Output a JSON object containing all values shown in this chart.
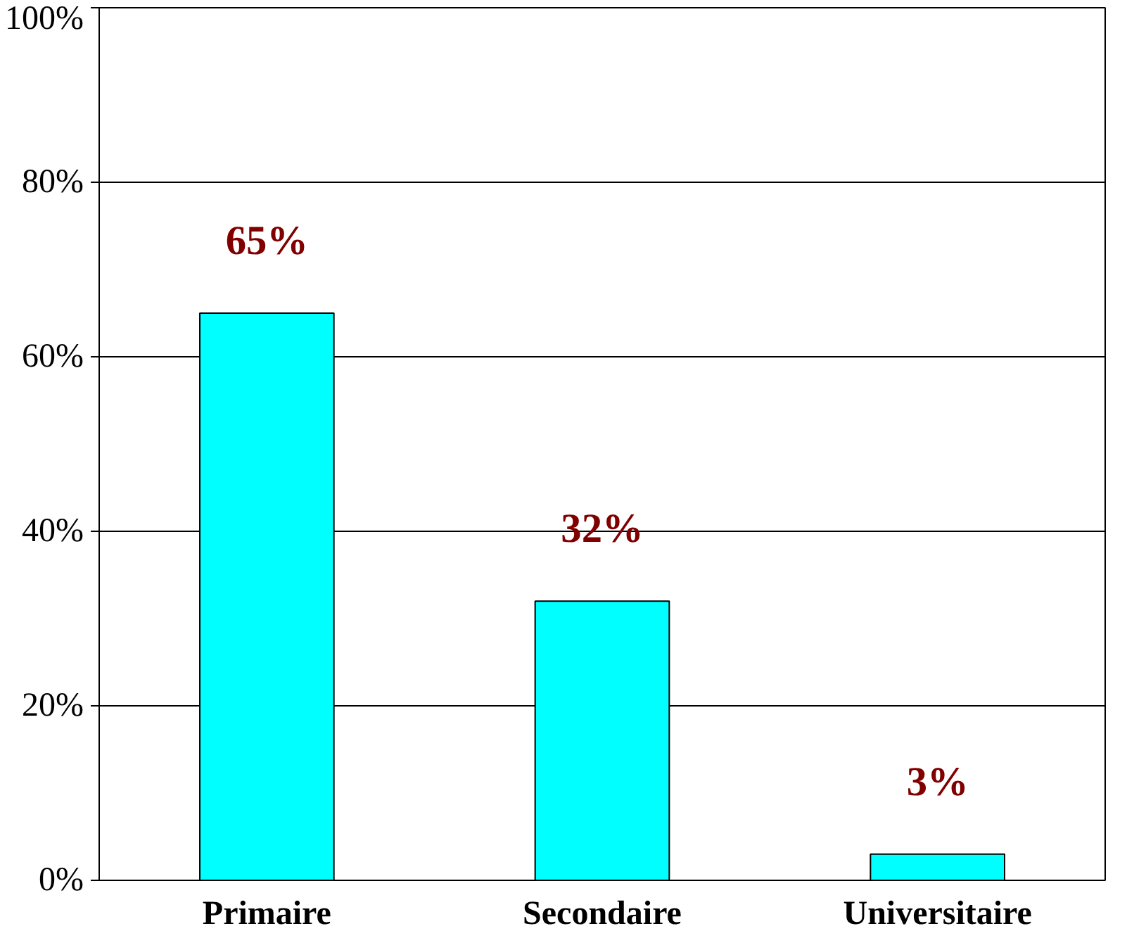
{
  "chart_data": {
    "type": "bar",
    "categories": [
      "Primaire",
      "Secondaire",
      "Universitaire"
    ],
    "values": [
      65,
      32,
      3
    ],
    "color": "#00ffff",
    "value_labels": [
      "65%",
      "32%",
      "3%"
    ],
    "ylim": [
      0,
      100
    ],
    "yticks": [
      {
        "value": 0,
        "label": "0%"
      },
      {
        "value": 20,
        "label": "20%"
      },
      {
        "value": 40,
        "label": "40%"
      },
      {
        "value": 60,
        "label": "60%"
      },
      {
        "value": 80,
        "label": "80%"
      },
      {
        "value": 100,
        "label": "100%"
      }
    ],
    "grid": "y"
  }
}
